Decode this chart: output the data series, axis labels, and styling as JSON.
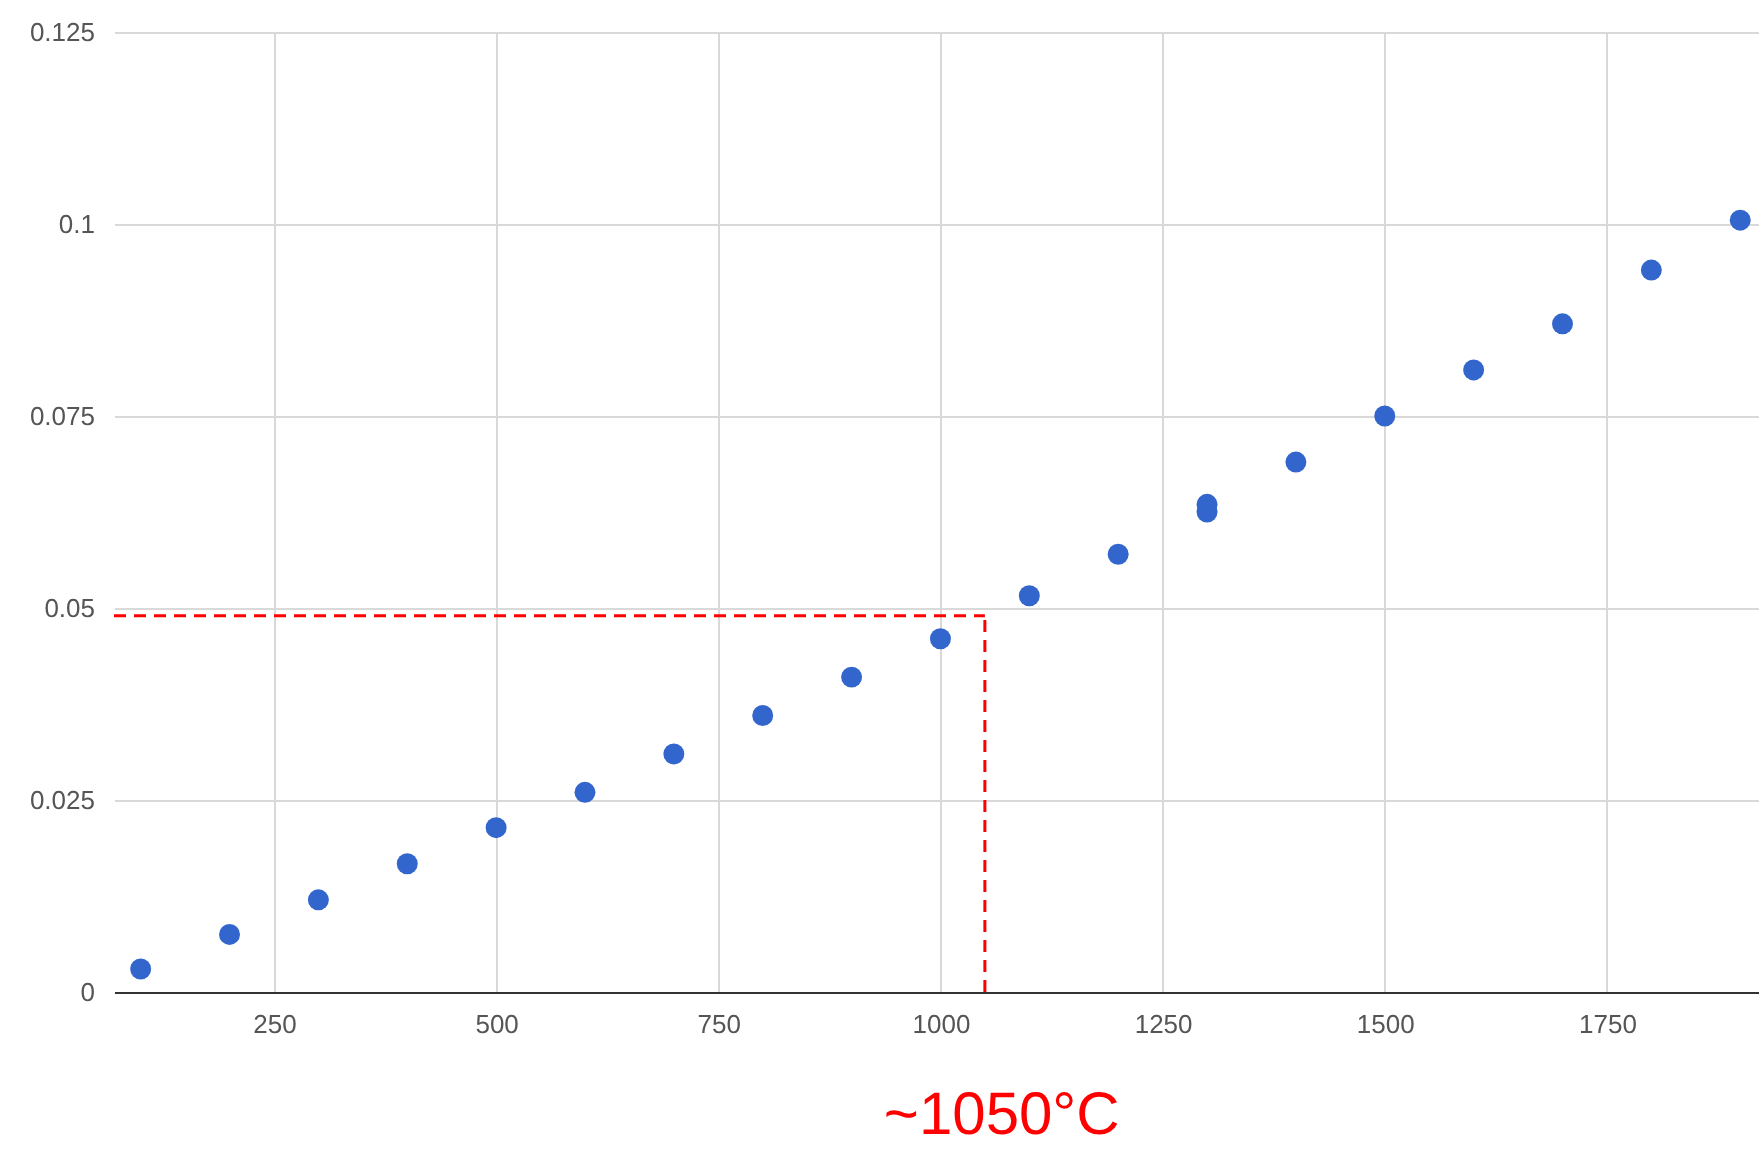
{
  "chart_data": {
    "type": "scatter",
    "x": [
      100,
      200,
      300,
      400,
      500,
      600,
      700,
      800,
      900,
      1000,
      1100,
      1200,
      1300,
      1300,
      1400,
      1500,
      1600,
      1700,
      1800,
      1900
    ],
    "series": [
      {
        "color": "#3366cc",
        "values": [
          0.003,
          0.0075,
          0.012,
          0.0167,
          0.0214,
          0.026,
          0.031,
          0.036,
          0.041,
          0.046,
          0.0516,
          0.057,
          0.0625,
          0.0635,
          0.069,
          0.075,
          0.081,
          0.087,
          0.094,
          0.1005
        ]
      }
    ],
    "xlim": [
      70,
      1920
    ],
    "xticks": [
      250,
      500,
      750,
      1000,
      1250,
      1500,
      1750
    ],
    "ylim": [
      0,
      0.125
    ],
    "yticks": [
      0,
      0.025,
      0.05,
      0.075,
      0.1,
      0.125
    ],
    "grid": true,
    "marker": "circle",
    "ref_lines": [
      {
        "axis": "y",
        "value": 0.049,
        "color": "#ff0000",
        "line_style": "dashed"
      },
      {
        "axis": "x",
        "value": 1050,
        "color": "#ff0000",
        "line_style": "dashed"
      }
    ],
    "annotations": [
      "~1050°C"
    ]
  }
}
